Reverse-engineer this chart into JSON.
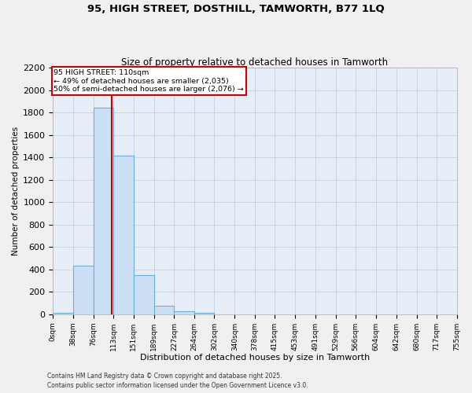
{
  "title1": "95, HIGH STREET, DOSTHILL, TAMWORTH, B77 1LQ",
  "title2": "Size of property relative to detached houses in Tamworth",
  "xlabel": "Distribution of detached houses by size in Tamworth",
  "ylabel": "Number of detached properties",
  "bin_edges": [
    0,
    38,
    76,
    113,
    151,
    189,
    227,
    264,
    302,
    340,
    378,
    415,
    453,
    491,
    529,
    566,
    604,
    642,
    680,
    717,
    755
  ],
  "bar_heights": [
    10,
    430,
    1840,
    1415,
    350,
    75,
    25,
    10,
    0,
    0,
    0,
    0,
    0,
    0,
    0,
    0,
    0,
    0,
    0,
    0
  ],
  "bar_color": "#cce0f5",
  "bar_edge_color": "#6aaed6",
  "red_line_x": 110,
  "ylim": [
    0,
    2200
  ],
  "yticks": [
    0,
    200,
    400,
    600,
    800,
    1000,
    1200,
    1400,
    1600,
    1800,
    2000,
    2200
  ],
  "xtick_labels": [
    "0sqm",
    "38sqm",
    "76sqm",
    "113sqm",
    "151sqm",
    "189sqm",
    "227sqm",
    "264sqm",
    "302sqm",
    "340sqm",
    "378sqm",
    "415sqm",
    "453sqm",
    "491sqm",
    "529sqm",
    "566sqm",
    "604sqm",
    "642sqm",
    "680sqm",
    "717sqm",
    "755sqm"
  ],
  "annotation_title": "95 HIGH STREET: 110sqm",
  "annotation_line1": "← 49% of detached houses are smaller (2,035)",
  "annotation_line2": "50% of semi-detached houses are larger (2,076) →",
  "annotation_box_color": "#ffffff",
  "annotation_box_edge_color": "#cc0000",
  "footnote1": "Contains HM Land Registry data © Crown copyright and database right 2025.",
  "footnote2": "Contains public sector information licensed under the Open Government Licence v3.0.",
  "grid_color": "#c8d4e8",
  "background_color": "#e8eef8",
  "fig_background": "#f0f0f0"
}
